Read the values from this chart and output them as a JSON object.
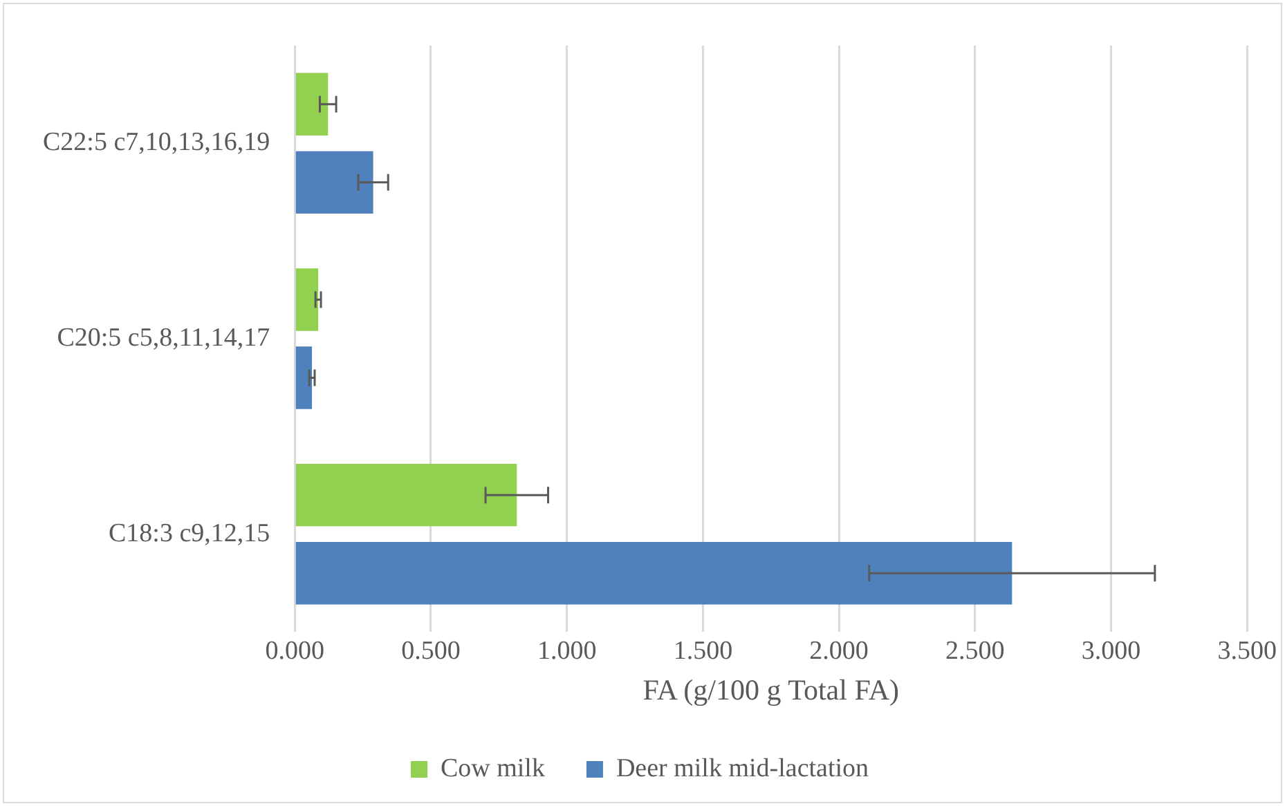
{
  "chart_data": {
    "type": "bar",
    "orientation": "horizontal",
    "xlabel": "FA (g/100 g Total FA)",
    "categories": [
      "C22:5 c7,10,13,16,19",
      "C20:5 c5,8,11,14,17",
      "C18:3 c9,12,15"
    ],
    "series": [
      {
        "name": "Cow milk",
        "color": "#92d050",
        "values": [
          0.122,
          0.086,
          0.816
        ],
        "errors": [
          0.03,
          0.01,
          0.115
        ]
      },
      {
        "name": "Deer milk mid-lactation",
        "color": "#4f81bd",
        "values": [
          0.288,
          0.063,
          2.636
        ],
        "errors": [
          0.055,
          0.01,
          0.525
        ]
      }
    ],
    "xlim": [
      0,
      3.5
    ],
    "xticks": [
      {
        "value": 0,
        "label": "0.000"
      },
      {
        "value": 0.5,
        "label": "0.500"
      },
      {
        "value": 1,
        "label": "1.000"
      },
      {
        "value": 1.5,
        "label": "1.500"
      },
      {
        "value": 2,
        "label": "2.000"
      },
      {
        "value": 2.5,
        "label": "2.500"
      },
      {
        "value": 3,
        "label": "3.000"
      },
      {
        "value": 3.5,
        "label": "3.500"
      }
    ],
    "grid": "x",
    "legend": "bottom"
  }
}
